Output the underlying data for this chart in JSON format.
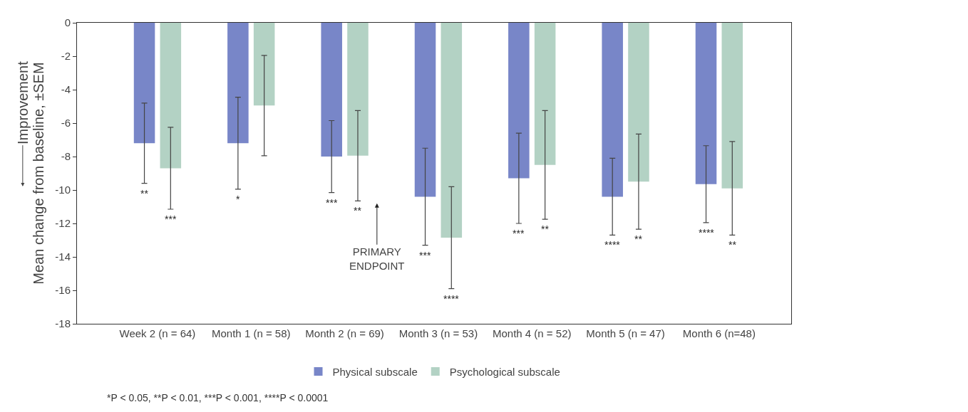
{
  "chart_data": {
    "type": "bar",
    "categories": [
      "Week 2 (n = 64)",
      "Month 1 (n = 58)",
      "Month 2 (n = 69)",
      "Month 3 (n = 53)",
      "Month 4 (n = 52)",
      "Month 5 (n = 47)",
      "Month 6 (n=48)"
    ],
    "ylabel": "Mean change from baseline, ±SEM",
    "ylim": [
      -18,
      0
    ],
    "yticks": [
      -18,
      -16,
      -14,
      -12,
      -10,
      -8,
      -6,
      -4,
      -2,
      0
    ],
    "legend": "bottom",
    "series": [
      {
        "name": "Physical subscale",
        "color": "#7886c8",
        "values": [
          -7.2,
          -7.2,
          -8.0,
          -10.4,
          -9.3,
          -10.4,
          -9.65
        ],
        "errors": [
          2.4,
          2.75,
          2.15,
          2.9,
          2.7,
          2.3,
          2.3
        ]
      },
      {
        "name": "Psychological subscale",
        "color": "#b3d2c4",
        "values": [
          -8.7,
          -4.95,
          -7.95,
          -12.85,
          -8.5,
          -9.5,
          -9.9
        ],
        "errors": [
          2.45,
          3.0,
          2.7,
          3.05,
          3.25,
          2.85,
          2.8
        ]
      }
    ],
    "annotations": [
      "**",
      "***",
      "*",
      "***",
      "**",
      "***",
      "****",
      "***",
      "**",
      "****",
      "**",
      "****",
      "**",
      "PRIMARY\nENDPOINT",
      "Improvement",
      "*P < 0.05, **P < 0.01, ***P < 0.001, ****P < 0.0001"
    ]
  }
}
